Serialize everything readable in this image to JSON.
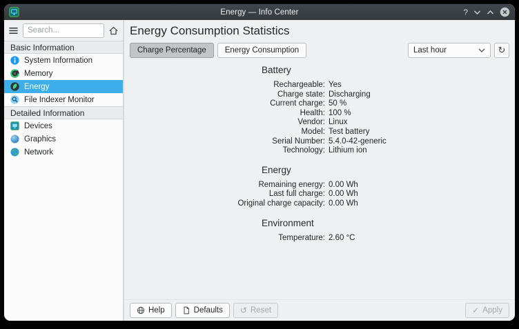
{
  "colors": {
    "accent": "#3daee9",
    "titlebar_bg": "#383e43",
    "window_bg": "#eff0f1",
    "sidebar_bg": "#fbfbfc"
  },
  "titlebar": {
    "title": "Energy — Info Center",
    "help_glyph": "?"
  },
  "sidebar": {
    "search_placeholder": "Search...",
    "sections": [
      {
        "label": "Basic Information",
        "items": [
          {
            "label": "System Information",
            "icon": "system-information-icon",
            "selected": false
          },
          {
            "label": "Memory",
            "icon": "memory-icon",
            "selected": false
          },
          {
            "label": "Energy",
            "icon": "energy-icon",
            "selected": true
          },
          {
            "label": "File Indexer Monitor",
            "icon": "file-indexer-icon",
            "selected": false
          }
        ]
      },
      {
        "label": "Detailed Information",
        "items": [
          {
            "label": "Devices",
            "icon": "devices-icon",
            "selected": false
          },
          {
            "label": "Graphics",
            "icon": "graphics-icon",
            "selected": false
          },
          {
            "label": "Network",
            "icon": "network-icon",
            "selected": false
          }
        ]
      }
    ]
  },
  "main": {
    "title": "Energy Consumption Statistics",
    "toolbar": {
      "toggles": [
        {
          "label": "Charge Percentage",
          "active": true
        },
        {
          "label": "Energy Consumption",
          "active": false
        }
      ],
      "period_value": "Last hour",
      "refresh_glyph": "↻"
    },
    "sections": [
      {
        "title": "Battery",
        "rows": [
          {
            "label": "Rechargeable:",
            "value": "Yes"
          },
          {
            "label": "Charge state:",
            "value": "Discharging"
          },
          {
            "label": "Current charge:",
            "value": "50 %"
          },
          {
            "label": "Health:",
            "value": "100 %"
          },
          {
            "label": "Vendor:",
            "value": "Linux"
          },
          {
            "label": "Model:",
            "value": "Test battery"
          },
          {
            "label": "Serial Number:",
            "value": "5.4.0-42-generic"
          },
          {
            "label": "Technology:",
            "value": "Lithium ion"
          }
        ]
      },
      {
        "title": "Energy",
        "rows": [
          {
            "label": "Remaining energy:",
            "value": "0.00 Wh"
          },
          {
            "label": "Last full charge:",
            "value": "0.00 Wh"
          },
          {
            "label": "Original charge capacity:",
            "value": "0.00 Wh"
          }
        ]
      },
      {
        "title": "Environment",
        "rows": [
          {
            "label": "Temperature:",
            "value": "2.60 °C"
          }
        ]
      }
    ],
    "footer": {
      "help": "Help",
      "defaults": "Defaults",
      "reset": "Reset",
      "apply": "Apply",
      "reset_glyph": "↺",
      "apply_glyph": "✓"
    }
  }
}
